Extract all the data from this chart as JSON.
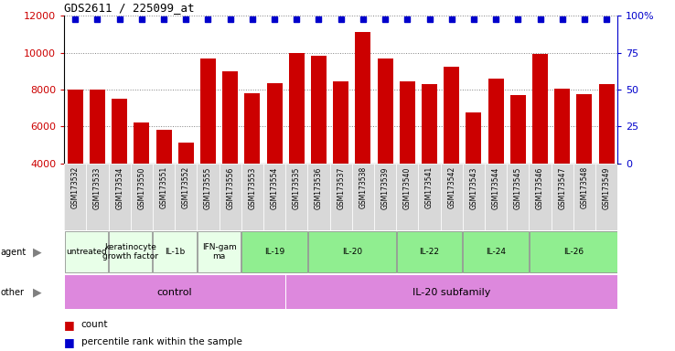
{
  "title": "GDS2611 / 225099_at",
  "samples": [
    "GSM173532",
    "GSM173533",
    "GSM173534",
    "GSM173550",
    "GSM173551",
    "GSM173552",
    "GSM173555",
    "GSM173556",
    "GSM173553",
    "GSM173554",
    "GSM173535",
    "GSM173536",
    "GSM173537",
    "GSM173538",
    "GSM173539",
    "GSM173540",
    "GSM173541",
    "GSM173542",
    "GSM173543",
    "GSM173544",
    "GSM173545",
    "GSM173546",
    "GSM173547",
    "GSM173548",
    "GSM173549"
  ],
  "counts": [
    8000,
    8000,
    7500,
    6200,
    5800,
    5100,
    9700,
    9000,
    7800,
    8350,
    10000,
    9850,
    8450,
    11100,
    9700,
    8450,
    8300,
    9250,
    6750,
    8600,
    7700,
    9950,
    8050,
    7750,
    8300
  ],
  "bar_color": "#cc0000",
  "dot_color": "#0000cc",
  "ylim_left": [
    4000,
    12000
  ],
  "ylim_right": [
    0,
    100
  ],
  "yticks_left": [
    4000,
    6000,
    8000,
    10000,
    12000
  ],
  "yticks_right": [
    0,
    25,
    50,
    75,
    100
  ],
  "ytick_labels_right": [
    "0",
    "25",
    "50",
    "75",
    "100%"
  ],
  "agent_groups": [
    {
      "label": "untreated",
      "start": 0,
      "end": 2,
      "color": "#e8ffe8"
    },
    {
      "label": "keratinocyte\ngrowth factor",
      "start": 2,
      "end": 4,
      "color": "#e8ffe8"
    },
    {
      "label": "IL-1b",
      "start": 4,
      "end": 6,
      "color": "#e8ffe8"
    },
    {
      "label": "IFN-gam\nma",
      "start": 6,
      "end": 8,
      "color": "#e8ffe8"
    },
    {
      "label": "IL-19",
      "start": 8,
      "end": 11,
      "color": "#90ee90"
    },
    {
      "label": "IL-20",
      "start": 11,
      "end": 15,
      "color": "#90ee90"
    },
    {
      "label": "IL-22",
      "start": 15,
      "end": 18,
      "color": "#90ee90"
    },
    {
      "label": "IL-24",
      "start": 18,
      "end": 21,
      "color": "#90ee90"
    },
    {
      "label": "IL-26",
      "start": 21,
      "end": 25,
      "color": "#90ee90"
    }
  ],
  "other_groups": [
    {
      "label": "control",
      "start": 0,
      "end": 10,
      "color": "#dd88dd"
    },
    {
      "label": "IL-20 subfamily",
      "start": 10,
      "end": 25,
      "color": "#dd88dd"
    }
  ],
  "sample_bg": "#d8d8d8"
}
